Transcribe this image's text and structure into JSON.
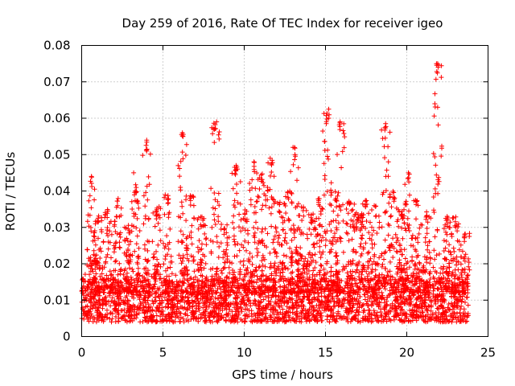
{
  "chart_data": {
    "type": "scatter",
    "title": "Day 259 of 2016, Rate Of TEC Index for receiver igeo",
    "xlabel": "GPS time / hours",
    "ylabel": "ROTI / TECUs",
    "xlim": [
      0,
      25
    ],
    "ylim": [
      0,
      0.08
    ],
    "grid": true,
    "x_ticks": [
      "0",
      "5",
      "10",
      "15",
      "20",
      "25"
    ],
    "y_ticks": [
      "0",
      "0.01",
      "0.02",
      "0.03",
      "0.04",
      "0.05",
      "0.06",
      "0.07",
      "0.08"
    ],
    "marker": "+",
    "color": "#ff0000",
    "x_range_observed": [
      0,
      23.8
    ],
    "baseline_band": [
      0.004,
      0.016
    ],
    "notable_points": [
      {
        "x": 21.9,
        "y": 0.075
      },
      {
        "x": 21.9,
        "y": 0.063
      },
      {
        "x": 15.2,
        "y": 0.0625
      },
      {
        "x": 15.2,
        "y": 0.06
      },
      {
        "x": 15.9,
        "y": 0.059
      },
      {
        "x": 18.7,
        "y": 0.0585
      },
      {
        "x": 8.3,
        "y": 0.059
      },
      {
        "x": 6.2,
        "y": 0.056
      },
      {
        "x": 4.0,
        "y": 0.054
      },
      {
        "x": 13.0,
        "y": 0.052
      },
      {
        "x": 11.6,
        "y": 0.049
      },
      {
        "x": 9.5,
        "y": 0.047
      },
      {
        "x": 10.6,
        "y": 0.048
      },
      {
        "x": 20.1,
        "y": 0.045
      },
      {
        "x": 0.6,
        "y": 0.044
      },
      {
        "x": 3.2,
        "y": 0.045
      }
    ],
    "activity_peaks": [
      {
        "x": 0.6,
        "y": 0.044
      },
      {
        "x": 1.0,
        "y": 0.034
      },
      {
        "x": 1.6,
        "y": 0.035
      },
      {
        "x": 2.2,
        "y": 0.038
      },
      {
        "x": 2.9,
        "y": 0.031
      },
      {
        "x": 3.3,
        "y": 0.042
      },
      {
        "x": 4.0,
        "y": 0.054
      },
      {
        "x": 4.6,
        "y": 0.036
      },
      {
        "x": 5.3,
        "y": 0.039
      },
      {
        "x": 6.2,
        "y": 0.056
      },
      {
        "x": 6.7,
        "y": 0.039
      },
      {
        "x": 7.4,
        "y": 0.033
      },
      {
        "x": 8.2,
        "y": 0.059
      },
      {
        "x": 8.8,
        "y": 0.031
      },
      {
        "x": 9.5,
        "y": 0.047
      },
      {
        "x": 10.0,
        "y": 0.035
      },
      {
        "x": 10.6,
        "y": 0.048
      },
      {
        "x": 11.1,
        "y": 0.045
      },
      {
        "x": 11.7,
        "y": 0.049
      },
      {
        "x": 12.2,
        "y": 0.037
      },
      {
        "x": 12.7,
        "y": 0.04
      },
      {
        "x": 13.1,
        "y": 0.052
      },
      {
        "x": 13.6,
        "y": 0.036
      },
      {
        "x": 14.1,
        "y": 0.034
      },
      {
        "x": 14.6,
        "y": 0.038
      },
      {
        "x": 15.1,
        "y": 0.062
      },
      {
        "x": 15.6,
        "y": 0.04
      },
      {
        "x": 15.9,
        "y": 0.059
      },
      {
        "x": 16.5,
        "y": 0.039
      },
      {
        "x": 17.0,
        "y": 0.034
      },
      {
        "x": 17.5,
        "y": 0.038
      },
      {
        "x": 18.1,
        "y": 0.036
      },
      {
        "x": 18.7,
        "y": 0.058
      },
      {
        "x": 19.2,
        "y": 0.04
      },
      {
        "x": 19.7,
        "y": 0.036
      },
      {
        "x": 20.1,
        "y": 0.045
      },
      {
        "x": 20.6,
        "y": 0.039
      },
      {
        "x": 21.2,
        "y": 0.035
      },
      {
        "x": 21.9,
        "y": 0.075
      },
      {
        "x": 22.5,
        "y": 0.034
      },
      {
        "x": 23.0,
        "y": 0.033
      },
      {
        "x": 23.6,
        "y": 0.03
      }
    ]
  }
}
